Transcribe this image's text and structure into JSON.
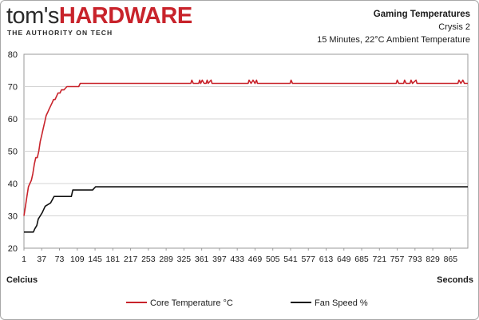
{
  "brand": {
    "name_part1": "tom's",
    "name_part2": "HARDWARE",
    "tagline": "THE AUTHORITY ON TECH",
    "accent_color": "#c8232b"
  },
  "header": {
    "title": "Gaming Temperatures",
    "subtitle": "Crysis 2",
    "conditions": "15 Minutes, 22°C Ambient Temperature"
  },
  "chart_data": {
    "type": "line",
    "x_tick_labels": [
      "1",
      "37",
      "73",
      "109",
      "145",
      "181",
      "217",
      "253",
      "289",
      "325",
      "361",
      "397",
      "433",
      "469",
      "505",
      "541",
      "577",
      "613",
      "649",
      "685",
      "721",
      "757",
      "793",
      "829",
      "865"
    ],
    "xlim": [
      1,
      900
    ],
    "ylim": [
      20,
      80
    ],
    "y_ticks": [
      20,
      30,
      40,
      50,
      60,
      70,
      80
    ],
    "xlabel": "Seconds",
    "ylabel": "Celcius",
    "grid": true,
    "legend_placement": "bottom",
    "series": [
      {
        "name": "Core Temperature °C",
        "color": "#c8232b",
        "points": [
          [
            1,
            30
          ],
          [
            4,
            33
          ],
          [
            7,
            36
          ],
          [
            10,
            39
          ],
          [
            13,
            40
          ],
          [
            16,
            41
          ],
          [
            19,
            43
          ],
          [
            22,
            46
          ],
          [
            25,
            48
          ],
          [
            28,
            48
          ],
          [
            31,
            50
          ],
          [
            34,
            53
          ],
          [
            37,
            55
          ],
          [
            40,
            57
          ],
          [
            43,
            59
          ],
          [
            46,
            61
          ],
          [
            49,
            62
          ],
          [
            52,
            63
          ],
          [
            55,
            64
          ],
          [
            58,
            65
          ],
          [
            61,
            66
          ],
          [
            64,
            66
          ],
          [
            67,
            67
          ],
          [
            70,
            68
          ],
          [
            74,
            68
          ],
          [
            77,
            69
          ],
          [
            82,
            69
          ],
          [
            88,
            70
          ],
          [
            95,
            70
          ],
          [
            105,
            70
          ],
          [
            112,
            70
          ],
          [
            115,
            71
          ],
          [
            125,
            71
          ],
          [
            140,
            71
          ],
          [
            200,
            71
          ],
          [
            300,
            71
          ],
          [
            339,
            71
          ],
          [
            341,
            72
          ],
          [
            344,
            71
          ],
          [
            355,
            71
          ],
          [
            357,
            72
          ],
          [
            359,
            71
          ],
          [
            362,
            72
          ],
          [
            366,
            71
          ],
          [
            370,
            71
          ],
          [
            372,
            72
          ],
          [
            374,
            71
          ],
          [
            380,
            72
          ],
          [
            382,
            71
          ],
          [
            455,
            71
          ],
          [
            457,
            72
          ],
          [
            461,
            71
          ],
          [
            465,
            72
          ],
          [
            469,
            71
          ],
          [
            472,
            72
          ],
          [
            474,
            71
          ],
          [
            540,
            71
          ],
          [
            542,
            72
          ],
          [
            545,
            71
          ],
          [
            700,
            71
          ],
          [
            755,
            71
          ],
          [
            757,
            72
          ],
          [
            760,
            71
          ],
          [
            770,
            71
          ],
          [
            772,
            72
          ],
          [
            775,
            71
          ],
          [
            783,
            71
          ],
          [
            785,
            72
          ],
          [
            788,
            71
          ],
          [
            795,
            72
          ],
          [
            797,
            71
          ],
          [
            880,
            71
          ],
          [
            882,
            72
          ],
          [
            886,
            71
          ],
          [
            890,
            72
          ],
          [
            893,
            71
          ],
          [
            900,
            71
          ]
        ]
      },
      {
        "name": "Fan Speed %",
        "color": "#111111",
        "points": [
          [
            1,
            25
          ],
          [
            20,
            25
          ],
          [
            23,
            26
          ],
          [
            27,
            27
          ],
          [
            30,
            29
          ],
          [
            34,
            30
          ],
          [
            38,
            31
          ],
          [
            44,
            33
          ],
          [
            55,
            34
          ],
          [
            62,
            36
          ],
          [
            80,
            36
          ],
          [
            97,
            36
          ],
          [
            100,
            38
          ],
          [
            140,
            38
          ],
          [
            146,
            39
          ],
          [
            900,
            39
          ]
        ]
      }
    ]
  }
}
